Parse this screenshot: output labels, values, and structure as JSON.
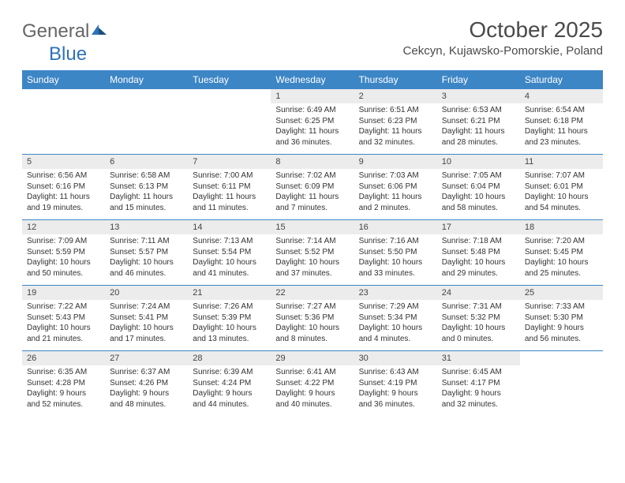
{
  "logo": {
    "part1": "General",
    "part2": "Blue"
  },
  "title": "October 2025",
  "location": "Cekcyn, Kujawsko-Pomorskie, Poland",
  "day_headers": [
    "Sunday",
    "Monday",
    "Tuesday",
    "Wednesday",
    "Thursday",
    "Friday",
    "Saturday"
  ],
  "header_bg": "#3d86c6",
  "header_fg": "#ffffff",
  "daynum_bg": "#ececec",
  "rule_color": "#3d86c6",
  "text_color": "#333333",
  "weeks": [
    [
      {
        "n": "",
        "sr": "",
        "ss": "",
        "dl": ""
      },
      {
        "n": "",
        "sr": "",
        "ss": "",
        "dl": ""
      },
      {
        "n": "",
        "sr": "",
        "ss": "",
        "dl": ""
      },
      {
        "n": "1",
        "sr": "Sunrise: 6:49 AM",
        "ss": "Sunset: 6:25 PM",
        "dl": "Daylight: 11 hours and 36 minutes."
      },
      {
        "n": "2",
        "sr": "Sunrise: 6:51 AM",
        "ss": "Sunset: 6:23 PM",
        "dl": "Daylight: 11 hours and 32 minutes."
      },
      {
        "n": "3",
        "sr": "Sunrise: 6:53 AM",
        "ss": "Sunset: 6:21 PM",
        "dl": "Daylight: 11 hours and 28 minutes."
      },
      {
        "n": "4",
        "sr": "Sunrise: 6:54 AM",
        "ss": "Sunset: 6:18 PM",
        "dl": "Daylight: 11 hours and 23 minutes."
      }
    ],
    [
      {
        "n": "5",
        "sr": "Sunrise: 6:56 AM",
        "ss": "Sunset: 6:16 PM",
        "dl": "Daylight: 11 hours and 19 minutes."
      },
      {
        "n": "6",
        "sr": "Sunrise: 6:58 AM",
        "ss": "Sunset: 6:13 PM",
        "dl": "Daylight: 11 hours and 15 minutes."
      },
      {
        "n": "7",
        "sr": "Sunrise: 7:00 AM",
        "ss": "Sunset: 6:11 PM",
        "dl": "Daylight: 11 hours and 11 minutes."
      },
      {
        "n": "8",
        "sr": "Sunrise: 7:02 AM",
        "ss": "Sunset: 6:09 PM",
        "dl": "Daylight: 11 hours and 7 minutes."
      },
      {
        "n": "9",
        "sr": "Sunrise: 7:03 AM",
        "ss": "Sunset: 6:06 PM",
        "dl": "Daylight: 11 hours and 2 minutes."
      },
      {
        "n": "10",
        "sr": "Sunrise: 7:05 AM",
        "ss": "Sunset: 6:04 PM",
        "dl": "Daylight: 10 hours and 58 minutes."
      },
      {
        "n": "11",
        "sr": "Sunrise: 7:07 AM",
        "ss": "Sunset: 6:01 PM",
        "dl": "Daylight: 10 hours and 54 minutes."
      }
    ],
    [
      {
        "n": "12",
        "sr": "Sunrise: 7:09 AM",
        "ss": "Sunset: 5:59 PM",
        "dl": "Daylight: 10 hours and 50 minutes."
      },
      {
        "n": "13",
        "sr": "Sunrise: 7:11 AM",
        "ss": "Sunset: 5:57 PM",
        "dl": "Daylight: 10 hours and 46 minutes."
      },
      {
        "n": "14",
        "sr": "Sunrise: 7:13 AM",
        "ss": "Sunset: 5:54 PM",
        "dl": "Daylight: 10 hours and 41 minutes."
      },
      {
        "n": "15",
        "sr": "Sunrise: 7:14 AM",
        "ss": "Sunset: 5:52 PM",
        "dl": "Daylight: 10 hours and 37 minutes."
      },
      {
        "n": "16",
        "sr": "Sunrise: 7:16 AM",
        "ss": "Sunset: 5:50 PM",
        "dl": "Daylight: 10 hours and 33 minutes."
      },
      {
        "n": "17",
        "sr": "Sunrise: 7:18 AM",
        "ss": "Sunset: 5:48 PM",
        "dl": "Daylight: 10 hours and 29 minutes."
      },
      {
        "n": "18",
        "sr": "Sunrise: 7:20 AM",
        "ss": "Sunset: 5:45 PM",
        "dl": "Daylight: 10 hours and 25 minutes."
      }
    ],
    [
      {
        "n": "19",
        "sr": "Sunrise: 7:22 AM",
        "ss": "Sunset: 5:43 PM",
        "dl": "Daylight: 10 hours and 21 minutes."
      },
      {
        "n": "20",
        "sr": "Sunrise: 7:24 AM",
        "ss": "Sunset: 5:41 PM",
        "dl": "Daylight: 10 hours and 17 minutes."
      },
      {
        "n": "21",
        "sr": "Sunrise: 7:26 AM",
        "ss": "Sunset: 5:39 PM",
        "dl": "Daylight: 10 hours and 13 minutes."
      },
      {
        "n": "22",
        "sr": "Sunrise: 7:27 AM",
        "ss": "Sunset: 5:36 PM",
        "dl": "Daylight: 10 hours and 8 minutes."
      },
      {
        "n": "23",
        "sr": "Sunrise: 7:29 AM",
        "ss": "Sunset: 5:34 PM",
        "dl": "Daylight: 10 hours and 4 minutes."
      },
      {
        "n": "24",
        "sr": "Sunrise: 7:31 AM",
        "ss": "Sunset: 5:32 PM",
        "dl": "Daylight: 10 hours and 0 minutes."
      },
      {
        "n": "25",
        "sr": "Sunrise: 7:33 AM",
        "ss": "Sunset: 5:30 PM",
        "dl": "Daylight: 9 hours and 56 minutes."
      }
    ],
    [
      {
        "n": "26",
        "sr": "Sunrise: 6:35 AM",
        "ss": "Sunset: 4:28 PM",
        "dl": "Daylight: 9 hours and 52 minutes."
      },
      {
        "n": "27",
        "sr": "Sunrise: 6:37 AM",
        "ss": "Sunset: 4:26 PM",
        "dl": "Daylight: 9 hours and 48 minutes."
      },
      {
        "n": "28",
        "sr": "Sunrise: 6:39 AM",
        "ss": "Sunset: 4:24 PM",
        "dl": "Daylight: 9 hours and 44 minutes."
      },
      {
        "n": "29",
        "sr": "Sunrise: 6:41 AM",
        "ss": "Sunset: 4:22 PM",
        "dl": "Daylight: 9 hours and 40 minutes."
      },
      {
        "n": "30",
        "sr": "Sunrise: 6:43 AM",
        "ss": "Sunset: 4:19 PM",
        "dl": "Daylight: 9 hours and 36 minutes."
      },
      {
        "n": "31",
        "sr": "Sunrise: 6:45 AM",
        "ss": "Sunset: 4:17 PM",
        "dl": "Daylight: 9 hours and 32 minutes."
      },
      {
        "n": "",
        "sr": "",
        "ss": "",
        "dl": ""
      }
    ]
  ]
}
